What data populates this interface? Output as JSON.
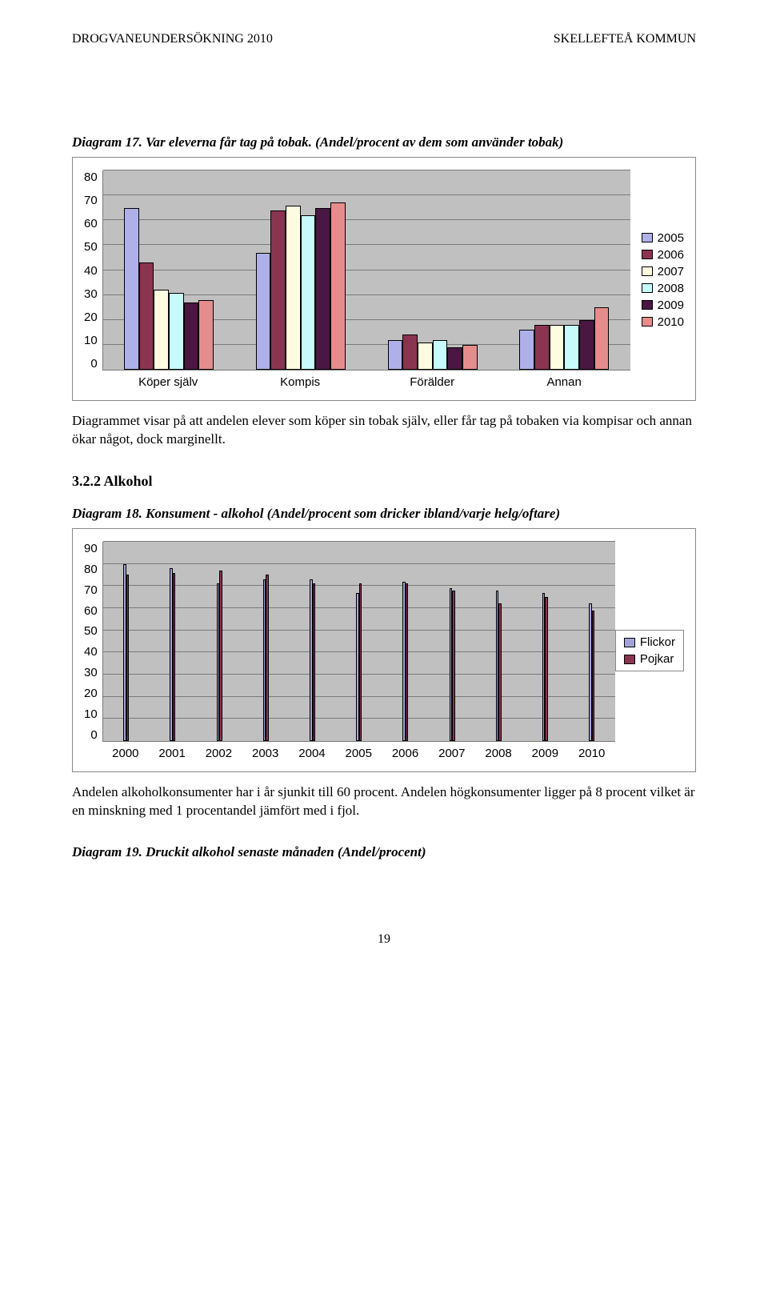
{
  "header": {
    "left": "DROGVANEUNDERSÖKNING 2010",
    "right": "SKELLEFTEÅ KOMMUN"
  },
  "diagram17": {
    "title": "Diagram 17. Var eleverna får tag på tobak. (Andel/procent av dem som använder tobak)",
    "ymax": 80,
    "ytick_step": 10,
    "yticks": [
      "80",
      "70",
      "60",
      "50",
      "40",
      "30",
      "20",
      "10",
      "0"
    ],
    "categories": [
      "Köper själv",
      "Kompis",
      "Förälder",
      "Annan"
    ],
    "series": [
      {
        "label": "2005",
        "color": "#b0b0e8",
        "values": [
          65,
          47,
          12,
          16
        ]
      },
      {
        "label": "2006",
        "color": "#8b3450",
        "values": [
          43,
          64,
          14,
          18
        ]
      },
      {
        "label": "2007",
        "color": "#fdfbe0",
        "values": [
          32,
          66,
          11,
          18
        ]
      },
      {
        "label": "2008",
        "color": "#c7fafa",
        "values": [
          31,
          62,
          12,
          18
        ]
      },
      {
        "label": "2009",
        "color": "#4a1742",
        "values": [
          27,
          65,
          9,
          20
        ]
      },
      {
        "label": "2010",
        "color": "#e58d8c",
        "values": [
          28,
          67,
          10,
          25
        ]
      }
    ],
    "plot_bg": "#c0c0c0",
    "grid_color": "#7a7a7a"
  },
  "para1": "Diagrammet visar på att andelen elever som köper sin tobak själv, eller får tag på tobaken via kompisar och annan ökar något, dock marginellt.",
  "section": "3.2.2 Alkohol",
  "diagram18": {
    "title": "Diagram 18. Konsument - alkohol (Andel/procent som dricker ibland/varje helg/oftare)",
    "ymax": 90,
    "ytick_step": 10,
    "yticks": [
      "90",
      "80",
      "70",
      "60",
      "50",
      "40",
      "30",
      "20",
      "10",
      "0"
    ],
    "categories": [
      "2000",
      "2001",
      "2002",
      "2003",
      "2004",
      "2005",
      "2006",
      "2007",
      "2008",
      "2009",
      "2010"
    ],
    "series": [
      {
        "label": "Flickor",
        "color": "#a3a3d9",
        "values": [
          80,
          78,
          71,
          73,
          73,
          67,
          72,
          69,
          68,
          67,
          62
        ]
      },
      {
        "label": "Pojkar",
        "color": "#8b3450",
        "values": [
          75,
          76,
          77,
          75,
          71,
          71,
          71,
          68,
          62,
          65,
          59
        ]
      }
    ],
    "plot_bg": "#c0c0c0",
    "grid_color": "#7a7a7a"
  },
  "para2": "Andelen alkoholkonsumenter har i år sjunkit till 60 procent. Andelen högkonsumenter ligger på 8 procent vilket är en minskning med 1 procentandel jämfört med i fjol.",
  "diagram19title": "Diagram 19. Druckit alkohol senaste månaden (Andel/procent)",
  "pagenum": "19"
}
